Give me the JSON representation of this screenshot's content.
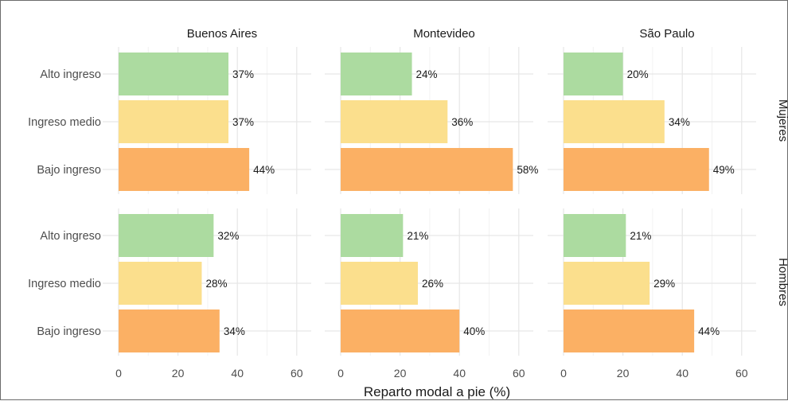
{
  "chart_data": {
    "type": "bar",
    "orientation": "horizontal",
    "xlabel": "Reparto modal a pie (%)",
    "ylabel": "",
    "xlim": [
      0,
      70
    ],
    "x_ticks": [
      0,
      20,
      40,
      60
    ],
    "grid": true,
    "columns": [
      "Buenos Aires",
      "Montevideo",
      "São Paulo"
    ],
    "rows": [
      "Mujeres",
      "Hombres"
    ],
    "categories": [
      "Alto ingreso",
      "Ingreso medio",
      "Bajo ingreso"
    ],
    "colors": {
      "Alto ingreso": "#acdba0",
      "Ingreso medio": "#fbdf8d",
      "Bajo ingreso": "#fbb064"
    },
    "panels": [
      {
        "column": "Buenos Aires",
        "row": "Mujeres",
        "values": [
          37,
          37,
          44
        ],
        "labels": [
          "37%",
          "37%",
          "44%"
        ]
      },
      {
        "column": "Montevideo",
        "row": "Mujeres",
        "values": [
          24,
          36,
          58
        ],
        "labels": [
          "24%",
          "36%",
          "58%"
        ]
      },
      {
        "column": "São Paulo",
        "row": "Mujeres",
        "values": [
          20,
          34,
          49
        ],
        "labels": [
          "20%",
          "34%",
          "49%"
        ]
      },
      {
        "column": "Buenos Aires",
        "row": "Hombres",
        "values": [
          32,
          28,
          34
        ],
        "labels": [
          "32%",
          "28%",
          "34%"
        ]
      },
      {
        "column": "Montevideo",
        "row": "Hombres",
        "values": [
          21,
          26,
          40
        ],
        "labels": [
          "21%",
          "26%",
          "40%"
        ]
      },
      {
        "column": "São Paulo",
        "row": "Hombres",
        "values": [
          21,
          29,
          44
        ],
        "labels": [
          "21%",
          "29%",
          "44%"
        ]
      }
    ]
  }
}
